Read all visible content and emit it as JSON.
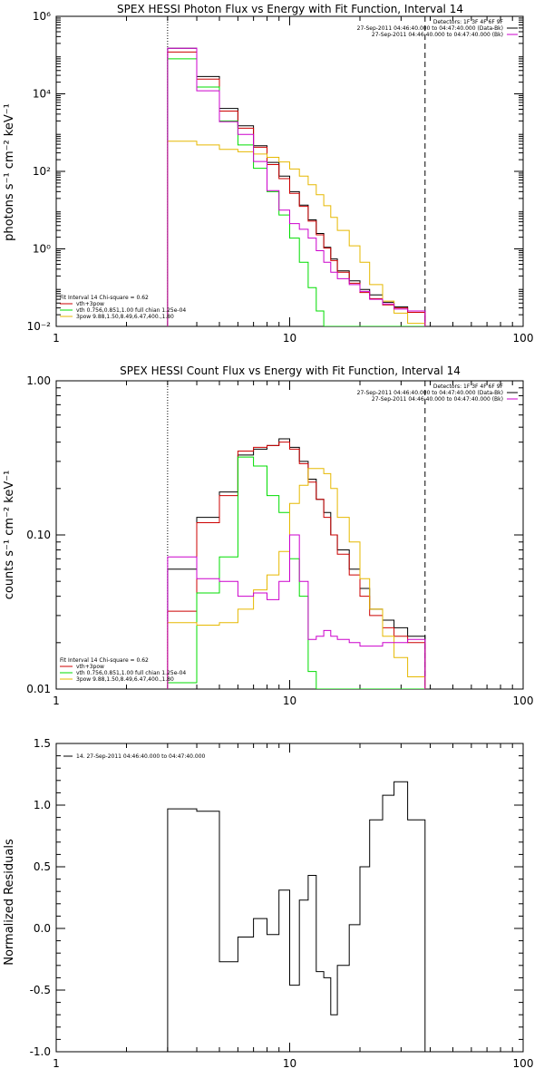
{
  "colors": {
    "data": "#000000",
    "vth_3pow": "#cc0000",
    "vth": "#00dd00",
    "pow": "#e6b800",
    "bk": "#cc00cc"
  },
  "chart_data": [
    {
      "type": "line",
      "title": "SPEX HESSI Photon Flux vs Energy with Fit Function, Interval 14",
      "ylabel": "photons s⁻¹ cm⁻² keV⁻¹",
      "xlog": true,
      "ylog": true,
      "xlim": [
        1,
        100
      ],
      "ylim": [
        0.01,
        1000000
      ],
      "xticks": [
        {
          "v": 1,
          "label": "1"
        },
        {
          "v": 10,
          "label": "10"
        },
        {
          "v": 100,
          "label": "100"
        }
      ],
      "yticks": [
        {
          "v": 0.01,
          "label": "10⁻²"
        },
        {
          "v": 1,
          "label": "10⁰"
        },
        {
          "v": 100,
          "label": "10²"
        },
        {
          "v": 10000,
          "label": "10⁴"
        },
        {
          "v": 1000000,
          "label": "10⁶"
        }
      ],
      "vlines": [
        {
          "x": 3,
          "style": "dotted",
          "color": "#000000"
        },
        {
          "x": 38,
          "style": "dashed",
          "color": "#000000"
        }
      ],
      "edges": [
        3,
        4,
        5,
        6,
        7,
        8,
        9,
        10,
        11,
        12,
        13,
        14,
        15,
        16,
        18,
        20,
        22,
        25,
        28,
        32,
        38
      ],
      "legend_top": [
        {
          "text": "Detectors: 1F 3F 4F 6F 9F",
          "color": "#000000"
        },
        {
          "text": "27-Sep-2011 04:46:40.000 to 04:47:40.000 (Data-Bk)",
          "color": "#000000"
        },
        {
          "text": "27-Sep-2011 04:46:40.000 to 04:47:40.000 (Bk)",
          "color": "#cc00cc"
        }
      ],
      "legend_bottom": [
        {
          "text": "Fit Interval 14    Chi-square = 0.62",
          "color": "#000000"
        },
        {
          "text": "vth+3pow",
          "color": "#cc0000"
        },
        {
          "text": "vth 0.756,0.851,1.00  full chian 1.25e-04",
          "color": "#00dd00"
        },
        {
          "text": "3pow 9.88,1.50,8.49,6.47,400.,1.80",
          "color": "#e6b800"
        }
      ],
      "series": [
        {
          "color": "#000000",
          "values": [
            150000,
            28000,
            4200,
            1500,
            460,
            170,
            75,
            30,
            13.5,
            5.6,
            2.5,
            1.1,
            0.55,
            0.27,
            0.15,
            0.09,
            0.065,
            0.042,
            0.032,
            0.025
          ]
        },
        {
          "color": "#cc0000",
          "values": [
            120000,
            24000,
            3600,
            1300,
            420,
            150,
            65,
            27,
            12.5,
            5.2,
            2.3,
            1.05,
            0.5,
            0.25,
            0.13,
            0.075,
            0.052,
            0.036,
            0.03,
            0.023
          ]
        },
        {
          "color": "#00dd00",
          "values": [
            80000,
            15000,
            2000,
            480,
            120,
            30,
            7.5,
            1.9,
            0.45,
            0.1,
            0.025,
            0.01,
            0.008,
            0.008,
            0.008,
            0.008,
            0.008,
            0.008,
            0.008,
            0.008
          ]
        },
        {
          "color": "#e6b800",
          "values": [
            600,
            480,
            370,
            320,
            280,
            230,
            175,
            115,
            75,
            45,
            25,
            13,
            6.5,
            3,
            1.2,
            0.45,
            0.12,
            0.045,
            0.022,
            0.012
          ]
        },
        {
          "color": "#cc00cc",
          "values": [
            150000,
            12000,
            1900,
            900,
            180,
            32,
            10,
            4.5,
            3.2,
            1.9,
            0.9,
            0.45,
            0.25,
            0.17,
            0.12,
            0.08,
            0.05,
            0.038,
            0.028,
            0.025
          ]
        }
      ]
    },
    {
      "type": "line",
      "title": "SPEX HESSI Count Flux vs Energy with Fit Function, Interval 14",
      "ylabel": "counts s⁻¹ cm⁻² keV⁻¹",
      "xlog": true,
      "ylog": true,
      "xlim": [
        1,
        100
      ],
      "ylim": [
        0.01,
        1.0
      ],
      "xticks": [
        {
          "v": 1,
          "label": "1"
        },
        {
          "v": 10,
          "label": "10"
        },
        {
          "v": 100,
          "label": "100"
        }
      ],
      "yticks": [
        {
          "v": 0.01,
          "label": "0.01"
        },
        {
          "v": 0.1,
          "label": "0.10"
        },
        {
          "v": 1.0,
          "label": "1.00"
        }
      ],
      "vlines": [
        {
          "x": 3,
          "style": "dotted",
          "color": "#000000"
        },
        {
          "x": 38,
          "style": "dashed",
          "color": "#000000"
        }
      ],
      "edges": [
        3,
        4,
        5,
        6,
        7,
        8,
        9,
        10,
        11,
        12,
        13,
        14,
        15,
        16,
        18,
        20,
        22,
        25,
        28,
        32,
        38
      ],
      "legend_top": [
        {
          "text": "Detectors: 1F 3F 4F 6F 9F",
          "color": "#000000"
        },
        {
          "text": "27-Sep-2011 04:46:40.000 to 04:47:40.000 (Data-Bk)",
          "color": "#000000"
        },
        {
          "text": "27-Sep-2011 04:46:40.000 to 04:47:40.000 (Bk)",
          "color": "#cc00cc"
        }
      ],
      "legend_bottom": [
        {
          "text": "Fit Interval 14    Chi-square = 0.62",
          "color": "#000000"
        },
        {
          "text": "vth+3pow",
          "color": "#cc0000"
        },
        {
          "text": "vth 0.756,0.851,1.00  full chian 1.25e-04",
          "color": "#00dd00"
        },
        {
          "text": "3pow 9.88,1.50,8.49,6.47,400.,1.80",
          "color": "#e6b800"
        }
      ],
      "series": [
        {
          "color": "#000000",
          "values": [
            0.06,
            0.13,
            0.19,
            0.33,
            0.36,
            0.38,
            0.42,
            0.37,
            0.3,
            0.23,
            0.17,
            0.14,
            0.1,
            0.08,
            0.06,
            0.045,
            0.033,
            0.028,
            0.025,
            0.022
          ]
        },
        {
          "color": "#cc0000",
          "values": [
            0.032,
            0.12,
            0.18,
            0.35,
            0.37,
            0.38,
            0.4,
            0.36,
            0.29,
            0.22,
            0.17,
            0.13,
            0.1,
            0.075,
            0.055,
            0.04,
            0.03,
            0.025,
            0.022,
            0.02
          ]
        },
        {
          "color": "#00dd00",
          "values": [
            0.011,
            0.042,
            0.072,
            0.32,
            0.28,
            0.18,
            0.14,
            0.07,
            0.04,
            0.013,
            0.01,
            0.01,
            0.01,
            0.01,
            0.01,
            0.01,
            0.01,
            0.01,
            0.01,
            0.01
          ]
        },
        {
          "color": "#e6b800",
          "values": [
            0.027,
            0.026,
            0.027,
            0.033,
            0.044,
            0.055,
            0.078,
            0.16,
            0.21,
            0.27,
            0.27,
            0.25,
            0.2,
            0.13,
            0.09,
            0.052,
            0.033,
            0.022,
            0.016,
            0.012
          ]
        },
        {
          "color": "#cc00cc",
          "values": [
            0.072,
            0.052,
            0.05,
            0.04,
            0.042,
            0.038,
            0.05,
            0.1,
            0.05,
            0.021,
            0.022,
            0.024,
            0.022,
            0.021,
            0.02,
            0.019,
            0.019,
            0.02,
            0.02,
            0.021
          ]
        }
      ]
    },
    {
      "type": "line",
      "title": "",
      "ylabel": "Normalized Residuals",
      "xlog": true,
      "ylog": false,
      "xlim": [
        1,
        100
      ],
      "ylim": [
        -1.0,
        1.5
      ],
      "xticks": [
        {
          "v": 1,
          "label": "1"
        },
        {
          "v": 10,
          "label": "10"
        },
        {
          "v": 100,
          "label": "100"
        }
      ],
      "yticks": [
        {
          "v": -1.0,
          "label": "-1.0"
        },
        {
          "v": -0.5,
          "label": "-0.5"
        },
        {
          "v": 0.0,
          "label": "0.0"
        },
        {
          "v": 0.5,
          "label": "0.5"
        },
        {
          "v": 1.0,
          "label": "1.0"
        },
        {
          "v": 1.5,
          "label": "1.5"
        }
      ],
      "vlines": [],
      "edges": [
        3,
        4,
        5,
        6,
        7,
        8,
        9,
        10,
        11,
        12,
        13,
        14,
        15,
        16,
        18,
        20,
        22,
        25,
        28,
        32,
        38
      ],
      "legend_top": [],
      "legend_left": [
        {
          "text": "14. 27-Sep-2011 04:46:40.000 to 04:47:40.000",
          "color": "#000000"
        }
      ],
      "legend_bottom": [],
      "series": [
        {
          "color": "#000000",
          "values": [
            0.97,
            0.95,
            -0.27,
            -0.07,
            0.08,
            -0.05,
            0.31,
            -0.46,
            0.23,
            0.43,
            -0.35,
            -0.4,
            -0.7,
            -0.3,
            0.03,
            0.5,
            0.88,
            1.08,
            1.19,
            0.88
          ]
        }
      ]
    }
  ]
}
